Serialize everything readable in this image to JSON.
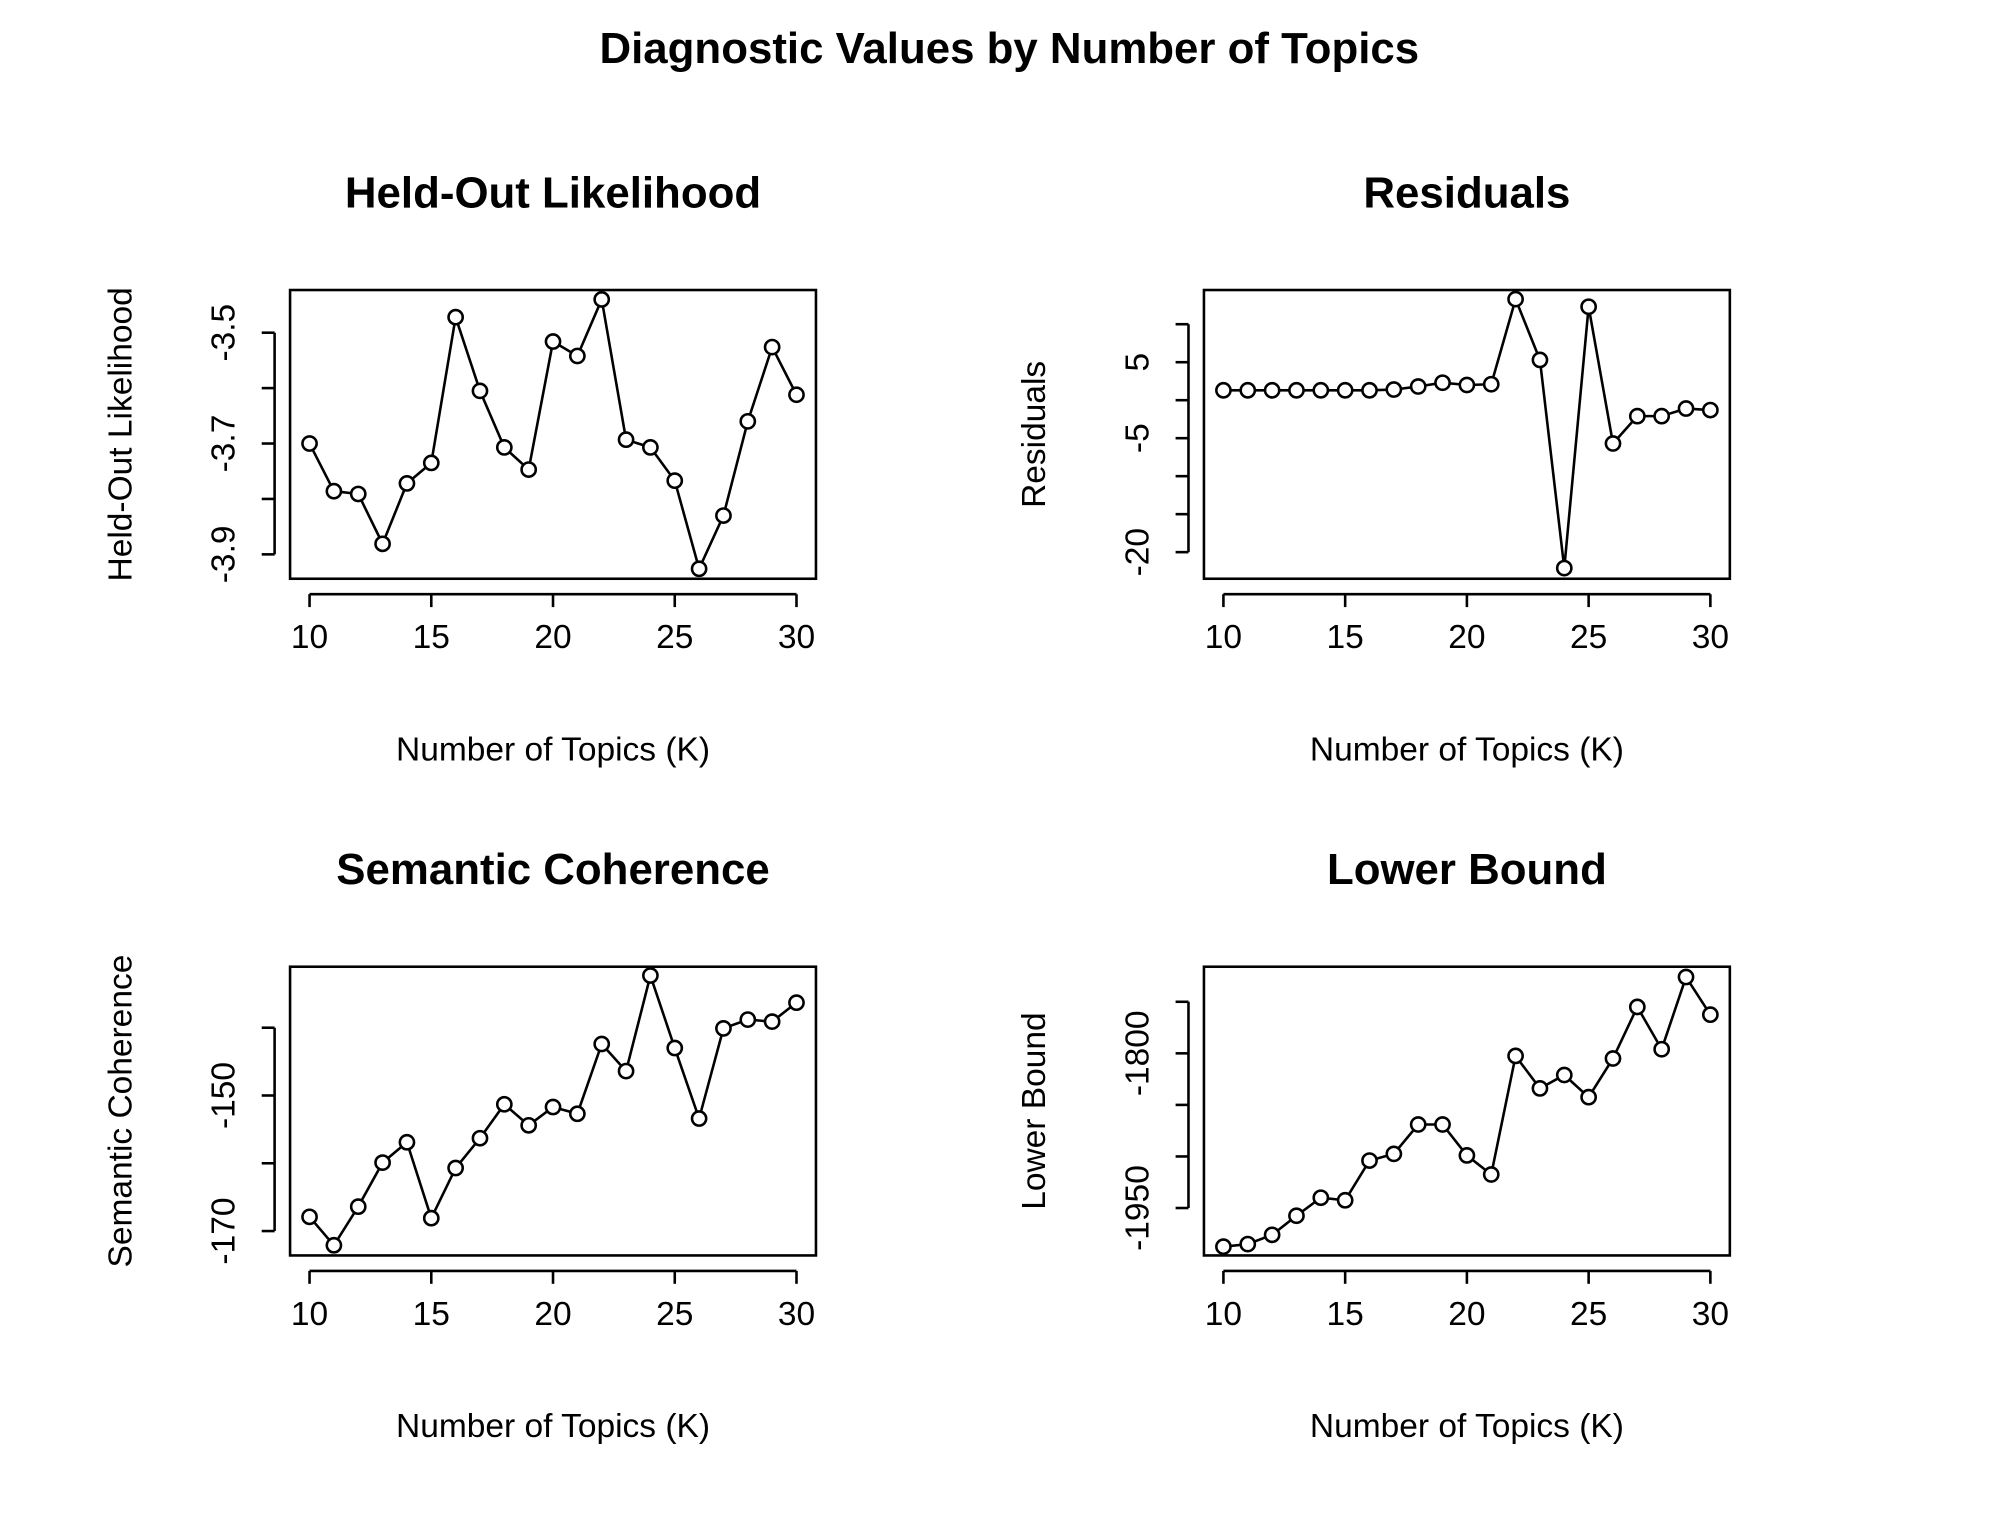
{
  "title": "Diagnostic Values by Number of Topics",
  "chart_data": [
    {
      "type": "line",
      "title": "Held-Out Likelihood",
      "xlabel": "Number of Topics (K)",
      "ylabel": "Held-Out Likelihood",
      "color": "#000000",
      "markers": true,
      "x": [
        10,
        11,
        12,
        13,
        14,
        15,
        16,
        17,
        18,
        19,
        20,
        21,
        22,
        23,
        24,
        25,
        26,
        27,
        28,
        29,
        30
      ],
      "values": [
        -3.7,
        -3.786,
        -3.791,
        -3.881,
        -3.772,
        -3.735,
        -3.472,
        -3.605,
        -3.707,
        -3.747,
        -3.516,
        -3.542,
        -3.44,
        -3.693,
        -3.707,
        -3.767,
        -3.926,
        -3.83,
        -3.66,
        -3.526,
        -3.612
      ],
      "xlim": [
        9.2,
        30.8
      ],
      "ylim": [
        -3.944,
        -3.423
      ],
      "xticks": [
        10,
        15,
        20,
        25,
        30
      ],
      "yticks": [
        -3.5,
        -3.7,
        -3.9
      ],
      "yminor": [
        -3.6,
        -3.8
      ]
    },
    {
      "type": "line",
      "title": "Residuals",
      "xlabel": "Number of Topics (K)",
      "ylabel": "Residuals",
      "color": "#000000",
      "markers": true,
      "x": [
        10,
        11,
        12,
        13,
        14,
        15,
        16,
        17,
        18,
        19,
        20,
        21,
        22,
        23,
        24,
        25,
        26,
        27,
        28,
        29,
        30
      ],
      "values": [
        1.3,
        1.3,
        1.3,
        1.3,
        1.3,
        1.3,
        1.3,
        1.4,
        1.8,
        2.3,
        2.0,
        2.1,
        13.3,
        5.3,
        -22.1,
        12.3,
        -5.7,
        -2.1,
        -2.1,
        -1.1,
        -1.3
      ],
      "xlim": [
        9.2,
        30.8
      ],
      "ylim": [
        -23.5,
        14.5
      ],
      "xticks": [
        10,
        15,
        20,
        25,
        30
      ],
      "yticks": [
        5,
        -5,
        -20
      ],
      "yminor": [
        10,
        0,
        -10,
        -15
      ]
    },
    {
      "type": "line",
      "title": "Semantic Coherence",
      "xlabel": "Number of Topics (K)",
      "ylabel": "Semantic Coherence",
      "color": "#000000",
      "markers": true,
      "x": [
        10,
        11,
        12,
        13,
        14,
        15,
        16,
        17,
        18,
        19,
        20,
        21,
        22,
        23,
        24,
        25,
        26,
        27,
        28,
        29,
        30
      ],
      "values": [
        -167.9,
        -172.1,
        -166.4,
        -159.9,
        -156.9,
        -168.1,
        -160.7,
        -156.3,
        -151.3,
        -154.4,
        -151.7,
        -152.7,
        -142.4,
        -146.4,
        -132.3,
        -143.0,
        -153.4,
        -140.1,
        -138.8,
        -139.1,
        -136.3
      ],
      "xlim": [
        9.2,
        30.8
      ],
      "ylim": [
        -173.6,
        -131.0
      ],
      "xticks": [
        10,
        15,
        20,
        25,
        30
      ],
      "yticks": [
        -150,
        -170
      ],
      "yminor": [
        -140,
        -160
      ]
    },
    {
      "type": "line",
      "title": "Lower Bound",
      "xlabel": "Number of Topics (K)",
      "ylabel": "Lower Bound",
      "color": "#000000",
      "markers": true,
      "x": [
        10,
        11,
        12,
        13,
        14,
        15,
        16,
        17,
        18,
        19,
        20,
        21,
        22,
        23,
        24,
        25,
        26,
        27,
        28,
        29,
        30
      ],
      "values": [
        -1987.5,
        -1985,
        -1976,
        -1957.5,
        -1940,
        -1942.5,
        -1904,
        -1897.5,
        -1869,
        -1869,
        -1899,
        -1917.5,
        -1802.5,
        -1834,
        -1821,
        -1842.5,
        -1805,
        -1755,
        -1796,
        -1726,
        -1762.5
      ],
      "xlim": [
        9.2,
        30.8
      ],
      "ylim": [
        -1996,
        -1716
      ],
      "xticks": [
        10,
        15,
        20,
        25,
        30
      ],
      "yticks": [
        -1800,
        -1950
      ],
      "yminor": [
        -1750,
        -1850,
        -1900
      ]
    }
  ]
}
